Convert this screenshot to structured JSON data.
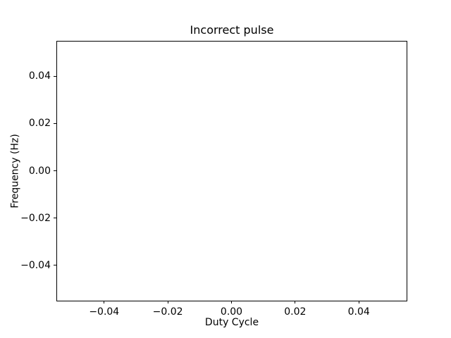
{
  "chart_data": {
    "type": "line",
    "title": "Incorrect pulse",
    "xlabel": "Duty Cycle",
    "ylabel": "Frequency (Hz)",
    "xlim": [
      -0.055,
      0.055
    ],
    "ylim": [
      -0.055,
      0.055
    ],
    "xticks": [
      -0.04,
      -0.02,
      0.0,
      0.02,
      0.04
    ],
    "yticks": [
      -0.04,
      -0.02,
      0.0,
      0.02,
      0.04
    ],
    "xtick_labels": [
      "−0.04",
      "−0.02",
      "0.00",
      "0.02",
      "0.04"
    ],
    "ytick_labels": [
      "−0.04",
      "−0.02",
      "0.00",
      "0.02",
      "0.04"
    ],
    "series": [],
    "grid": false,
    "legend": null,
    "background_color": "#ffffff",
    "spine_color": "#000000",
    "text_color": "#000000"
  }
}
